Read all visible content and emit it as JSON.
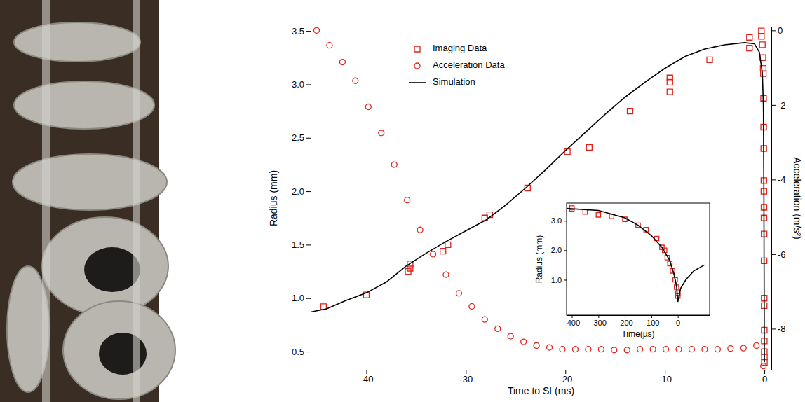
{
  "chart_data": [
    {
      "type": "scatter",
      "xlabel": "Time to SL(ms)",
      "ylabel": "Radius (mm)",
      "y2label": "Acceleration (m/s²)",
      "xlim": [
        -45.6,
        0.7
      ],
      "ylim": [
        0.33,
        3.54
      ],
      "y2lim": [
        -9.1,
        0.1
      ],
      "xticks": [
        -40,
        -30,
        -20,
        -10,
        0
      ],
      "yticks": [
        0.5,
        {
          "value": 1,
          "label": "1.0"
        },
        1.5,
        {
          "value": 2,
          "label": "2.0"
        },
        2.5,
        {
          "value": 3,
          "label": "3.0"
        },
        3.5
      ],
      "y2ticks": [
        0,
        -2,
        -4,
        -6,
        -8
      ],
      "legend": "upper left",
      "series": [
        {
          "name": "Imaging Data",
          "type": "scatter",
          "marker": "square",
          "color": "#e0241b",
          "x": [
            -44.3,
            -40,
            -35.8,
            -35.6,
            -35.6,
            -32.3,
            -31.8,
            -28.1,
            -27.6,
            -23.8,
            -19.8,
            -17.6,
            -13.5,
            -9.5,
            -9.5,
            -9.5,
            -5.5,
            -1.5,
            -1.5,
            -0.3,
            -0.3,
            -0.2,
            -0.15,
            -0.12,
            -0.1,
            -0.08,
            -0.07,
            -0.06,
            -0.05,
            -0.05,
            -0.04,
            -0.04,
            -0.03,
            -0.03,
            -0.02,
            -0.02,
            -0.01,
            -0.01,
            -0.01,
            0,
            0
          ],
          "values": [
            0.92,
            1.03,
            1.25,
            1.28,
            1.32,
            1.44,
            1.5,
            1.75,
            1.78,
            2.03,
            2.37,
            2.41,
            2.75,
            2.93,
            3.02,
            3.06,
            3.23,
            3.34,
            3.44,
            3.45,
            3.5,
            3.37,
            3.25,
            3.15,
            3.1,
            2.87,
            2.6,
            2.4,
            2.1,
            2.0,
            1.85,
            1.75,
            1.6,
            1.35,
            1.0,
            0.93,
            0.7,
            0.6,
            0.5,
            0.45,
            0.4
          ]
        },
        {
          "name": "Acceleration Data",
          "type": "scatter",
          "marker": "circle",
          "color": "#e0241b",
          "axis": "y2",
          "x": [
            -45,
            -43.7,
            -42.4,
            -41.1,
            -39.8,
            -38.5,
            -37.2,
            -35.9,
            -34.6,
            -33.3,
            -32,
            -30.7,
            -29.4,
            -28.1,
            -26.8,
            -25.5,
            -24.2,
            -22.9,
            -21.6,
            -20.3,
            -19,
            -17.7,
            -16.4,
            -15.1,
            -13.8,
            -12.5,
            -11.2,
            -9.9,
            -8.6,
            -7.3,
            -6,
            -4.7,
            -3.4,
            -2.1,
            -0.8,
            -0.1
          ],
          "values": [
            0,
            -0.4,
            -0.85,
            -1.35,
            -2.05,
            -2.75,
            -3.6,
            -4.55,
            -5.35,
            -6.0,
            -6.55,
            -7.05,
            -7.4,
            -7.75,
            -8.0,
            -8.2,
            -8.35,
            -8.45,
            -8.5,
            -8.55,
            -8.55,
            -8.55,
            -8.55,
            -8.57,
            -8.57,
            -8.55,
            -8.55,
            -8.55,
            -8.55,
            -8.55,
            -8.55,
            -8.55,
            -8.53,
            -8.52,
            -8.45,
            -9.0
          ]
        },
        {
          "name": "Simulation",
          "type": "line",
          "line_style": "solid",
          "color": "#000000",
          "x": [
            -45.6,
            -44,
            -42,
            -40,
            -38,
            -36,
            -34,
            -32,
            -30,
            -28,
            -26,
            -24,
            -22,
            -20,
            -18,
            -16,
            -14,
            -12,
            -10,
            -8,
            -6,
            -4,
            -2,
            -1,
            -0.5,
            -0.2,
            -0.1,
            -0.05,
            0
          ],
          "values": [
            0.87,
            0.9,
            0.98,
            1.05,
            1.15,
            1.3,
            1.42,
            1.53,
            1.63,
            1.73,
            1.87,
            2.03,
            2.2,
            2.38,
            2.55,
            2.72,
            2.88,
            3.02,
            3.15,
            3.26,
            3.33,
            3.37,
            3.39,
            3.38,
            3.3,
            3.1,
            2.8,
            2.0,
            0.4
          ]
        }
      ]
    },
    {
      "type": "scatter",
      "xlabel": "Time(µs)",
      "ylabel": "Radius (mm)",
      "xlim": [
        -420,
        120
      ],
      "ylim": [
        -0.2,
        3.6
      ],
      "xticks": [
        -400,
        -300,
        -200,
        -100,
        0
      ],
      "yticks": [
        {
          "value": 1,
          "label": "1.0"
        },
        {
          "value": 2,
          "label": "2.0"
        },
        {
          "value": 3,
          "label": "3.0"
        }
      ],
      "series": [
        {
          "type": "scatter",
          "marker": "square",
          "color": "#e0241b",
          "x": [
            -400,
            -400,
            -350,
            -300,
            -250,
            -200,
            -150,
            -120,
            -80,
            -60,
            -50,
            -40,
            -30,
            -20,
            -10,
            -5,
            0,
            0
          ],
          "values": [
            3.45,
            3.4,
            3.3,
            3.2,
            3.15,
            3.05,
            2.85,
            2.7,
            2.4,
            2.1,
            2.0,
            1.75,
            1.55,
            1.3,
            1.0,
            0.75,
            0.55,
            0.45
          ]
        },
        {
          "type": "line",
          "line_style": "solid",
          "color": "#000000",
          "x": [
            -420,
            -300,
            -200,
            -150,
            -100,
            -60,
            -30,
            -15,
            -5,
            0,
            10,
            30,
            60,
            100
          ],
          "values": [
            3.42,
            3.35,
            3.1,
            2.85,
            2.5,
            2.1,
            1.65,
            1.2,
            0.8,
            0.25,
            0.7,
            1.0,
            1.3,
            1.5
          ]
        }
      ]
    }
  ]
}
